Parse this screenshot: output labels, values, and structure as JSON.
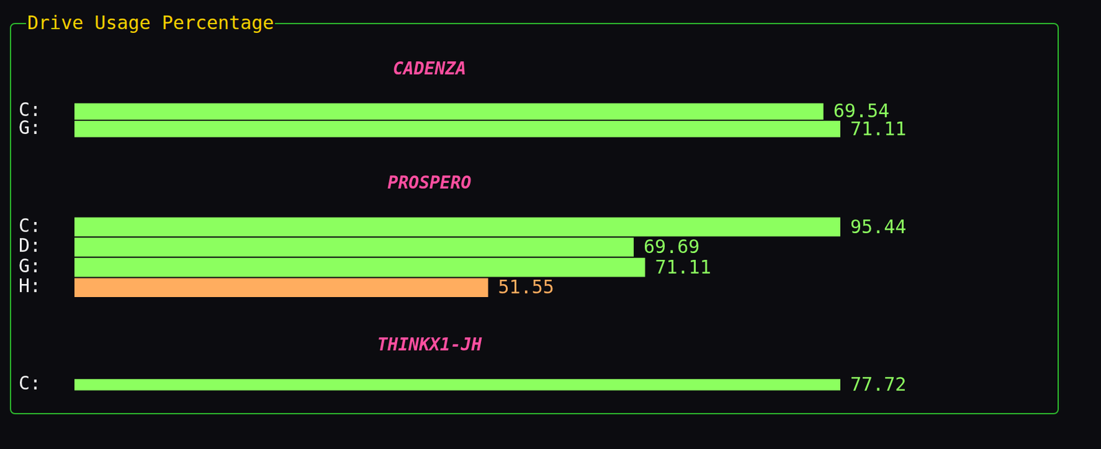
{
  "title": "Drive Usage Percentage",
  "chart_data": [
    {
      "type": "bar",
      "orientation": "horizontal",
      "title": "CADENZA",
      "categories": [
        "C:",
        "G:"
      ],
      "values": [
        69.54,
        71.11
      ],
      "colors": [
        "#8cff5f",
        "#8cff5f"
      ],
      "xlim": [
        0,
        71.11
      ],
      "data_labels": true,
      "tick_labels": "y",
      "grid": false
    },
    {
      "type": "bar",
      "orientation": "horizontal",
      "title": "PROSPERO",
      "categories": [
        "C:",
        "D:",
        "G:",
        "H:"
      ],
      "values": [
        95.44,
        69.69,
        71.11,
        51.55
      ],
      "colors": [
        "#8cff5f",
        "#8cff5f",
        "#8cff5f",
        "#ffad5f"
      ],
      "xlim": [
        0,
        95.44
      ],
      "data_labels": true,
      "tick_labels": "y",
      "grid": false
    },
    {
      "type": "bar",
      "orientation": "horizontal",
      "title": "THINKX1-JH",
      "categories": [
        "C:"
      ],
      "values": [
        77.72
      ],
      "colors": [
        "#8cff5f"
      ],
      "xlim": [
        0,
        77.72
      ],
      "data_labels": true,
      "tick_labels": "y",
      "grid": false
    }
  ]
}
